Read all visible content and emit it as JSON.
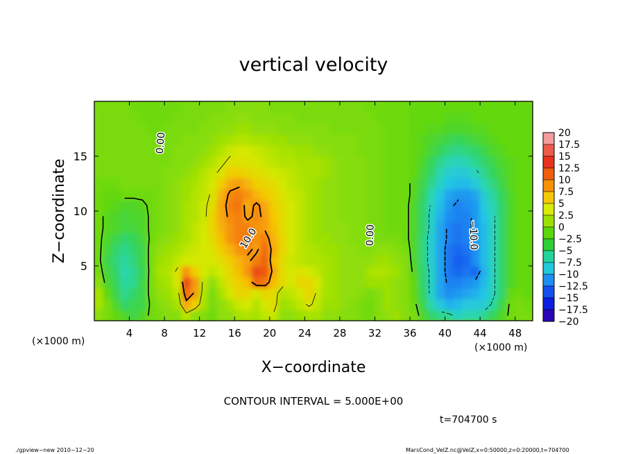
{
  "chart_data": {
    "type": "heatmap",
    "title": "vertical velocity",
    "xlabel": "X−coordinate",
    "ylabel": "Z−coordinate",
    "x_unit_left": "(×1000 m)",
    "x_unit_right": "(×1000 m)",
    "xlim": [
      0,
      50
    ],
    "ylim": [
      0,
      20
    ],
    "x_ticks": [
      4,
      8,
      12,
      16,
      20,
      24,
      28,
      32,
      36,
      40,
      44,
      48
    ],
    "y_ticks": [
      5,
      10,
      15
    ],
    "contour_interval_text": "CONTOUR INTERVAL = 5.000E+00",
    "time_text": "t=704700 s",
    "footer_left": "./gpview−new  2010−12−20",
    "footer_right": "MarsCond_VelZ.nc@VelZ,x=0:50000,z=0:20000,t=704700",
    "contour_labels": [
      {
        "text": "0.00",
        "x": 7.6,
        "z": 16.2,
        "rotate": -85
      },
      {
        "text": "10.0",
        "x": 17.6,
        "z": 7.5,
        "rotate": -58
      },
      {
        "text": "0.00",
        "x": 31.5,
        "z": 7.8,
        "rotate": -88
      },
      {
        "text": "−10.0",
        "x": 43.2,
        "z": 7.8,
        "rotate": 88
      }
    ],
    "colorbar": {
      "levels": [
        "20",
        "17.5",
        "15",
        "12.5",
        "10",
        "7.5",
        "5",
        "2.5",
        "0",
        "−2.5",
        "−5",
        "−7.5",
        "−10",
        "−12.5",
        "−15",
        "−17.5",
        "−20"
      ],
      "colors": [
        "#f59c9c",
        "#ec5a4a",
        "#e8321e",
        "#ef5e0e",
        "#f59208",
        "#f5c806",
        "#d8ea06",
        "#9ce006",
        "#5cd60c",
        "#2cd034",
        "#22d49c",
        "#22c8dc",
        "#1e8ef2",
        "#1450f0",
        "#0c1ee0",
        "#2a06b4",
        "#6606a2"
      ]
    },
    "w_field": {
      "x": [
        0.5,
        1.5,
        2.5,
        3.5,
        4.5,
        5.5,
        6.5,
        7.5,
        8.5,
        9.5,
        10.5,
        11.5,
        12.5,
        13.5,
        14.5,
        15.5,
        16.5,
        17.5,
        18.5,
        19.5,
        20.5,
        21.5,
        22.5,
        23.5,
        24.5,
        25.5,
        26.5,
        27.5,
        28.5,
        29.5,
        30.5,
        31.5,
        32.5,
        33.5,
        34.5,
        35.5,
        36.5,
        37.5,
        38.5,
        39.5,
        40.5,
        41.5,
        42.5,
        43.5,
        44.5,
        45.5,
        46.5,
        47.5,
        48.5,
        49.5
      ],
      "z": [
        0.5,
        1.5,
        2.5,
        3.5,
        4.5,
        5.5,
        6.5,
        7.5,
        8.5,
        9.5,
        10.5,
        11.5,
        12.5,
        13.5,
        14.5,
        15.5,
        16.5,
        17.5,
        18.5,
        19.5
      ],
      "values": [
        [
          2.0,
          1.0,
          0.0,
          -1.0,
          -2.0,
          -1.0,
          0.5,
          1.0,
          1.5,
          1.5,
          4.0,
          2.0,
          1.5,
          0.5,
          2.0,
          2.0,
          3.0,
          3.5,
          3.0,
          4.0,
          4.5,
          2.0,
          2.0,
          2.5,
          3.0,
          3.0,
          2.0,
          2.0,
          1.5,
          1.5,
          1.0,
          0.5,
          1.5,
          2.0,
          2.5,
          1.5,
          1.0,
          -1.0,
          -3.0,
          -4.0,
          -4.5,
          -6.0,
          -5.0,
          -5.0,
          -4.0,
          -2.5,
          -1.0,
          0.5,
          1.0,
          1.0
        ],
        [
          3.0,
          1.0,
          -1.0,
          -3.0,
          -2.0,
          -2.0,
          0.5,
          1.5,
          2.0,
          3.0,
          9.0,
          7.0,
          3.0,
          1.0,
          2.0,
          3.0,
          4.5,
          5.0,
          3.5,
          5.0,
          6.0,
          2.5,
          3.0,
          4.0,
          5.5,
          4.0,
          2.5,
          2.5,
          2.0,
          1.5,
          1.0,
          0.5,
          1.5,
          2.5,
          2.0,
          1.5,
          0.5,
          -2.0,
          -5.0,
          -7.0,
          -8.5,
          -8.0,
          -7.0,
          -7.0,
          -6.5,
          -4.5,
          -2.0,
          0.5,
          1.0,
          0.5
        ],
        [
          3.0,
          0.0,
          -2.0,
          -4.0,
          -3.0,
          -2.0,
          1.0,
          2.0,
          2.5,
          4.0,
          12.0,
          9.5,
          3.5,
          1.0,
          3.0,
          5.0,
          6.5,
          6.5,
          5.0,
          6.5,
          6.0,
          3.5,
          4.0,
          5.0,
          6.5,
          4.5,
          3.0,
          2.5,
          2.0,
          2.0,
          1.5,
          1.0,
          1.5,
          2.5,
          2.0,
          1.5,
          0.0,
          -2.5,
          -6.0,
          -9.0,
          -10.0,
          -9.5,
          -9.0,
          -8.5,
          -7.5,
          -5.5,
          -3.0,
          0.0,
          0.5,
          0.0
        ],
        [
          2.0,
          -1.0,
          -2.5,
          -4.5,
          -4.0,
          -2.0,
          1.0,
          2.5,
          3.0,
          5.0,
          14.0,
          10.0,
          4.0,
          2.0,
          4.0,
          6.0,
          7.0,
          8.0,
          12.0,
          11.5,
          8.0,
          6.0,
          5.0,
          6.5,
          6.5,
          5.0,
          3.0,
          2.5,
          2.0,
          2.0,
          2.0,
          2.5,
          2.5,
          2.5,
          2.0,
          1.5,
          0.0,
          -3.0,
          -6.0,
          -9.0,
          -10.5,
          -10.5,
          -10.0,
          -9.5,
          -8.0,
          -5.5,
          -3.0,
          -1.0,
          0.0,
          0.0
        ],
        [
          1.0,
          -1.5,
          -3.0,
          -5.0,
          -4.0,
          -2.5,
          1.0,
          3.0,
          3.5,
          5.5,
          10.0,
          7.0,
          5.0,
          4.0,
          5.0,
          6.5,
          8.0,
          10.0,
          14.0,
          13.0,
          9.0,
          6.0,
          5.0,
          5.5,
          5.0,
          4.0,
          3.0,
          2.5,
          2.0,
          2.0,
          2.0,
          3.0,
          3.5,
          3.0,
          2.5,
          1.5,
          -0.5,
          -3.0,
          -6.0,
          -9.0,
          -11.0,
          -11.5,
          -11.0,
          -11.5,
          -8.5,
          -5.5,
          -3.0,
          -1.0,
          0.0,
          0.0
        ],
        [
          0.5,
          -2.0,
          -3.5,
          -4.5,
          -3.5,
          -2.0,
          1.0,
          2.5,
          3.0,
          4.0,
          5.0,
          5.0,
          5.0,
          5.0,
          6.0,
          7.0,
          8.5,
          9.5,
          11.0,
          12.5,
          8.0,
          6.0,
          4.5,
          4.0,
          3.5,
          3.5,
          3.0,
          2.5,
          2.0,
          2.0,
          2.0,
          2.0,
          2.5,
          2.5,
          2.0,
          1.5,
          -1.0,
          -3.5,
          -6.5,
          -9.0,
          -11.0,
          -12.0,
          -11.5,
          -10.0,
          -8.0,
          -5.5,
          -3.0,
          -1.0,
          0.0,
          0.0
        ],
        [
          0.5,
          -1.5,
          -3.0,
          -4.0,
          -3.0,
          -2.0,
          1.0,
          2.0,
          2.5,
          3.0,
          4.0,
          4.5,
          5.0,
          5.5,
          7.0,
          8.5,
          10.0,
          10.5,
          9.5,
          12.0,
          9.0,
          6.5,
          5.0,
          4.0,
          3.5,
          3.0,
          2.5,
          2.5,
          2.0,
          2.0,
          1.5,
          1.5,
          2.0,
          2.0,
          1.5,
          1.0,
          -1.0,
          -3.5,
          -6.5,
          -9.0,
          -11.0,
          -11.5,
          -11.0,
          -10.0,
          -8.0,
          -5.5,
          -3.0,
          -1.0,
          0.0,
          0.0
        ],
        [
          0.5,
          -1.0,
          -2.0,
          -3.0,
          -2.5,
          -1.5,
          0.5,
          1.5,
          2.0,
          2.5,
          3.0,
          4.0,
          5.0,
          6.0,
          8.0,
          10.0,
          11.0,
          11.5,
          10.0,
          11.0,
          8.5,
          6.5,
          5.0,
          4.0,
          3.0,
          2.5,
          2.5,
          2.0,
          2.0,
          1.5,
          1.5,
          1.0,
          1.0,
          1.0,
          1.0,
          0.5,
          -1.0,
          -3.5,
          -6.5,
          -9.0,
          -10.5,
          -11.0,
          -10.5,
          -9.5,
          -8.0,
          -5.5,
          -3.0,
          -1.0,
          0.0,
          0.0
        ],
        [
          0.5,
          -0.5,
          -1.0,
          -1.5,
          -1.5,
          -1.0,
          0.5,
          1.0,
          1.5,
          2.0,
          3.0,
          4.0,
          5.0,
          6.5,
          8.5,
          10.0,
          11.0,
          11.0,
          10.0,
          9.5,
          8.0,
          6.0,
          5.0,
          4.0,
          3.0,
          2.5,
          2.0,
          2.0,
          2.0,
          1.5,
          1.5,
          1.0,
          1.0,
          0.5,
          0.5,
          0.5,
          -1.0,
          -3.0,
          -6.0,
          -9.0,
          -10.5,
          -11.0,
          -10.5,
          -9.5,
          -8.0,
          -5.5,
          -3.0,
          -1.0,
          0.0,
          0.0
        ],
        [
          0.5,
          -0.5,
          -1.0,
          -1.5,
          -1.0,
          -1.0,
          0.5,
          1.0,
          1.5,
          2.0,
          3.0,
          3.5,
          4.5,
          6.5,
          9.0,
          10.5,
          11.0,
          9.5,
          10.5,
          9.5,
          7.5,
          6.0,
          5.0,
          4.0,
          3.0,
          2.5,
          2.0,
          2.0,
          1.5,
          1.5,
          1.5,
          1.0,
          1.0,
          0.5,
          0.5,
          0.5,
          -1.0,
          -3.0,
          -6.0,
          -8.5,
          -10.0,
          -10.5,
          -10.5,
          -9.5,
          -7.5,
          -5.5,
          -3.0,
          -1.0,
          0.0,
          0.0
        ],
        [
          0.5,
          0.0,
          -0.5,
          -1.0,
          -1.0,
          -0.5,
          0.5,
          1.0,
          1.5,
          2.0,
          3.0,
          3.5,
          4.5,
          6.0,
          9.0,
          11.0,
          11.5,
          9.0,
          10.5,
          9.0,
          7.0,
          6.0,
          5.0,
          4.0,
          3.0,
          2.5,
          2.0,
          2.0,
          1.5,
          1.5,
          1.5,
          1.0,
          1.0,
          0.5,
          0.5,
          0.5,
          -1.0,
          -3.0,
          -5.5,
          -8.0,
          -9.5,
          -10.5,
          -10.0,
          -9.5,
          -7.0,
          -5.0,
          -3.0,
          -1.0,
          0.0,
          0.0
        ],
        [
          0.5,
          0.0,
          0.0,
          0.5,
          0.5,
          0.5,
          0.5,
          1.0,
          1.5,
          2.0,
          2.5,
          3.5,
          4.0,
          5.5,
          8.5,
          10.5,
          11.0,
          10.0,
          8.5,
          7.5,
          6.5,
          5.5,
          4.5,
          4.0,
          3.0,
          2.5,
          2.0,
          2.0,
          1.5,
          1.5,
          1.5,
          1.0,
          1.0,
          0.5,
          0.5,
          0.5,
          -0.5,
          -2.5,
          -5.0,
          -7.5,
          -9.0,
          -9.5,
          -9.5,
          -9.0,
          -6.5,
          -4.5,
          -2.5,
          -1.0,
          0.0,
          0.0
        ],
        [
          0.5,
          0.5,
          0.5,
          1.0,
          1.0,
          1.0,
          1.0,
          1.0,
          1.5,
          2.0,
          2.5,
          3.0,
          4.0,
          5.0,
          7.0,
          9.0,
          9.5,
          8.5,
          7.0,
          6.5,
          6.0,
          5.0,
          4.0,
          3.5,
          3.0,
          2.5,
          2.0,
          2.0,
          1.5,
          1.5,
          1.5,
          1.0,
          1.0,
          0.5,
          0.5,
          0.5,
          -0.5,
          -2.0,
          -4.0,
          -6.0,
          -7.5,
          -8.0,
          -8.0,
          -7.0,
          -5.0,
          -3.5,
          -2.0,
          -0.5,
          0.0,
          0.0
        ],
        [
          1.0,
          1.0,
          1.0,
          1.0,
          1.0,
          1.0,
          1.0,
          1.0,
          1.5,
          1.5,
          2.0,
          2.5,
          3.5,
          4.5,
          5.5,
          7.0,
          7.0,
          6.5,
          6.0,
          5.5,
          5.0,
          4.5,
          4.0,
          3.5,
          3.0,
          3.0,
          2.5,
          2.0,
          1.5,
          1.5,
          1.5,
          1.0,
          1.0,
          0.5,
          0.5,
          0.5,
          0.0,
          -1.5,
          -3.0,
          -5.0,
          -6.5,
          -7.0,
          -6.5,
          -5.5,
          -4.0,
          -2.5,
          -1.5,
          -0.5,
          0.0,
          0.0
        ],
        [
          1.0,
          1.0,
          1.0,
          1.0,
          1.0,
          1.0,
          1.0,
          1.0,
          1.0,
          1.5,
          1.5,
          2.0,
          2.5,
          3.5,
          4.5,
          5.5,
          5.5,
          5.5,
          5.0,
          4.5,
          4.0,
          3.5,
          3.5,
          3.0,
          3.0,
          3.0,
          2.5,
          2.0,
          1.5,
          1.5,
          1.5,
          1.0,
          1.0,
          0.5,
          0.5,
          0.5,
          0.0,
          -1.0,
          -2.5,
          -4.0,
          -5.0,
          -5.5,
          -5.0,
          -4.0,
          -3.0,
          -2.0,
          -1.0,
          -0.5,
          0.0,
          0.0
        ],
        [
          1.0,
          1.0,
          1.0,
          1.0,
          1.0,
          1.0,
          1.0,
          1.0,
          1.0,
          1.5,
          1.5,
          1.5,
          2.0,
          2.5,
          3.5,
          4.5,
          5.0,
          5.0,
          4.5,
          4.0,
          3.5,
          3.0,
          3.0,
          2.5,
          2.5,
          2.0,
          2.0,
          1.5,
          1.5,
          1.5,
          1.0,
          1.0,
          1.0,
          0.5,
          0.5,
          0.5,
          0.0,
          -0.5,
          -1.5,
          -2.5,
          -3.5,
          -4.0,
          -3.5,
          -3.0,
          -2.0,
          -1.0,
          -0.5,
          0.0,
          0.0,
          0.0
        ],
        [
          1.0,
          1.0,
          1.0,
          1.0,
          1.0,
          1.0,
          1.0,
          0.5,
          1.0,
          1.0,
          1.5,
          1.5,
          1.5,
          2.0,
          2.5,
          3.0,
          3.5,
          3.5,
          3.0,
          3.0,
          2.5,
          2.5,
          2.0,
          2.0,
          2.0,
          1.5,
          1.5,
          1.5,
          1.5,
          1.5,
          1.0,
          1.0,
          1.0,
          0.5,
          0.5,
          0.5,
          0.0,
          -0.5,
          -1.0,
          -1.5,
          -2.0,
          -2.5,
          -2.0,
          -1.5,
          -1.0,
          -0.5,
          0.0,
          0.0,
          0.0,
          0.0
        ],
        [
          1.0,
          1.0,
          1.0,
          1.0,
          1.0,
          1.0,
          0.5,
          0.5,
          1.0,
          1.0,
          1.0,
          1.0,
          1.5,
          1.5,
          2.0,
          2.0,
          2.5,
          2.5,
          2.0,
          2.0,
          2.0,
          1.5,
          1.5,
          1.5,
          1.5,
          1.5,
          1.5,
          1.0,
          1.0,
          1.0,
          1.0,
          1.0,
          1.0,
          0.5,
          0.5,
          0.5,
          0.0,
          0.0,
          -0.5,
          -0.5,
          -1.0,
          -1.0,
          -1.0,
          -0.5,
          -0.5,
          0.0,
          0.0,
          0.0,
          0.0,
          0.0
        ],
        [
          1.0,
          1.0,
          1.0,
          1.0,
          1.0,
          0.5,
          0.5,
          0.5,
          0.5,
          1.0,
          1.0,
          1.0,
          1.0,
          1.5,
          1.5,
          1.5,
          2.0,
          2.0,
          1.5,
          1.5,
          1.5,
          1.5,
          1.5,
          1.0,
          1.0,
          1.0,
          1.0,
          1.0,
          1.0,
          1.0,
          1.0,
          1.0,
          0.5,
          0.5,
          0.5,
          0.5,
          0.0,
          0.0,
          0.0,
          0.0,
          -0.5,
          -0.5,
          -0.5,
          0.0,
          0.0,
          0.0,
          0.0,
          0.0,
          0.0,
          0.0
        ],
        [
          1.0,
          1.0,
          1.0,
          1.0,
          0.5,
          0.5,
          0.5,
          0.5,
          0.5,
          0.5,
          1.0,
          1.0,
          1.0,
          1.0,
          1.0,
          1.5,
          1.5,
          1.5,
          1.5,
          1.5,
          1.0,
          1.0,
          1.0,
          1.0,
          1.0,
          1.0,
          1.0,
          1.0,
          1.0,
          1.0,
          1.0,
          0.5,
          0.5,
          0.5,
          0.5,
          0.5,
          0.0,
          0.0,
          0.0,
          0.0,
          0.0,
          0.0,
          0.0,
          0.0,
          0.0,
          0.0,
          0.0,
          0.0,
          0.0,
          0.0
        ]
      ]
    }
  }
}
